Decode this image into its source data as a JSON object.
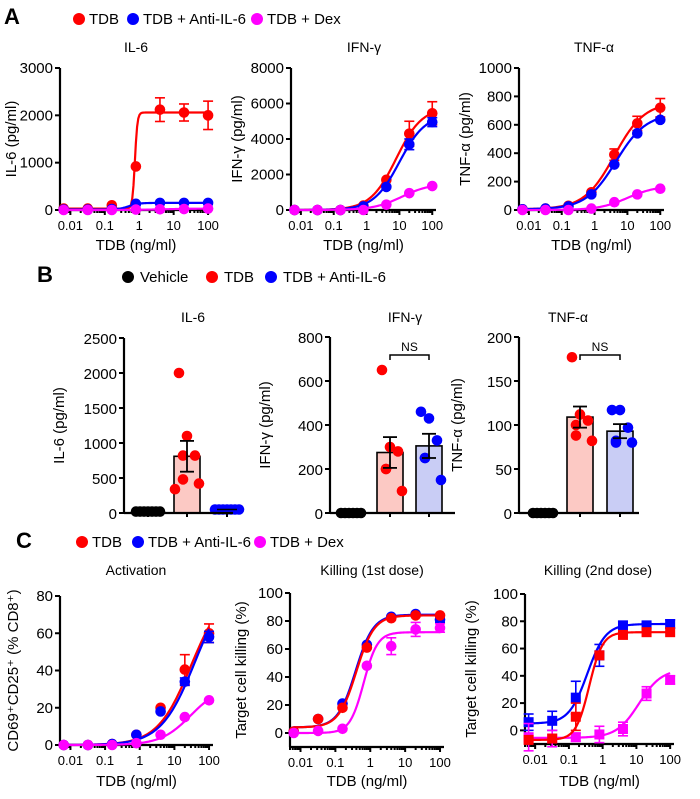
{
  "colors": {
    "TDB": "#ff0000",
    "TDB + Anti-IL-6": "#0000ff",
    "TDB + Dex": "#ff00ff",
    "Vehicle": "#000000",
    "bar_fill_TDB": "#fcc9c4",
    "bar_fill_anti": "#c9cdf5"
  },
  "panels": {
    "A": {
      "letter": "A",
      "legend": [
        "TDB",
        "TDB + Anti-IL-6",
        "TDB + Dex"
      ]
    },
    "B": {
      "letter": "B",
      "legend": [
        "Vehicle",
        "TDB",
        "TDB + Anti-IL-6"
      ]
    },
    "C": {
      "letter": "C",
      "legend": [
        "TDB",
        "TDB + Anti-IL-6",
        "TDB + Dex"
      ]
    }
  },
  "chart_data": [
    {
      "id": "A-IL6",
      "panel": "A",
      "type": "line",
      "title": "IL-6",
      "xlabel": "TDB (ng/ml)",
      "ylabel": "IL-6 (pg/ml)",
      "xscale": "log",
      "xlim": [
        0.005,
        130
      ],
      "xticks": [
        0.01,
        0.1,
        1,
        10,
        100
      ],
      "xticklabels": [
        "0.01",
        "0.1",
        "1",
        "10",
        "100"
      ],
      "ylim": [
        0,
        3000
      ],
      "yticks": [
        0,
        1000,
        2000,
        3000
      ],
      "marker": "circle",
      "x": [
        0.0064,
        0.032,
        0.16,
        0.8,
        4,
        20,
        100
      ],
      "series": [
        {
          "name": "TDB",
          "values": [
            30,
            30,
            100,
            920,
            2120,
            2060,
            2000
          ],
          "err": [
            0,
            0,
            0,
            0,
            250,
            180,
            300
          ],
          "fit": {
            "bottom": 30,
            "top": 2060,
            "ec50": 0.75,
            "hill": 12
          }
        },
        {
          "name": "TDB + Anti-IL-6",
          "values": [
            10,
            10,
            20,
            130,
            150,
            150,
            150
          ],
          "err": [
            0,
            0,
            0,
            0,
            0,
            0,
            0
          ],
          "fit": {
            "bottom": 10,
            "top": 150,
            "ec50": 0.5,
            "hill": 3
          }
        },
        {
          "name": "TDB + Dex",
          "values": [
            0,
            0,
            0,
            10,
            15,
            20,
            30
          ],
          "err": [
            0,
            0,
            0,
            0,
            0,
            0,
            0
          ],
          "fit": {
            "bottom": 0,
            "top": 30,
            "ec50": 5,
            "hill": 1
          }
        }
      ]
    },
    {
      "id": "A-IFNg",
      "panel": "A",
      "type": "line",
      "title": "IFN-γ",
      "xlabel": "TDB (ng/ml)",
      "ylabel": "IFN-γ (pg/ml)",
      "xscale": "log",
      "xlim": [
        0.005,
        130
      ],
      "xticks": [
        0.01,
        0.1,
        1,
        10,
        100
      ],
      "xticklabels": [
        "0.01",
        "0.1",
        "1",
        "10",
        "100"
      ],
      "ylim": [
        0,
        8000
      ],
      "yticks": [
        0,
        2000,
        4000,
        6000,
        8000
      ],
      "marker": "circle",
      "x": [
        0.0064,
        0.032,
        0.16,
        0.8,
        4,
        20,
        100
      ],
      "series": [
        {
          "name": "TDB",
          "values": [
            0,
            0,
            0,
            250,
            1700,
            4300,
            5450
          ],
          "err": [
            0,
            0,
            0,
            0,
            0,
            700,
            650
          ],
          "fit": {
            "bottom": 0,
            "top": 5800,
            "ec50": 8,
            "hill": 1.1
          }
        },
        {
          "name": "TDB + Anti-IL-6",
          "values": [
            0,
            0,
            0,
            200,
            1300,
            3700,
            4950
          ],
          "err": [
            0,
            0,
            0,
            0,
            0,
            300,
            250
          ],
          "fit": {
            "bottom": 0,
            "top": 5400,
            "ec50": 10,
            "hill": 1.1
          }
        },
        {
          "name": "TDB + Dex",
          "values": [
            0,
            0,
            0,
            0,
            300,
            950,
            1350
          ],
          "err": [
            0,
            0,
            0,
            0,
            0,
            0,
            0
          ],
          "fit": {
            "bottom": 0,
            "top": 1500,
            "ec50": 12,
            "hill": 1.0
          }
        }
      ]
    },
    {
      "id": "A-TNFa",
      "panel": "A",
      "type": "line",
      "title": "TNF-α",
      "xlabel": "TDB (ng/ml)",
      "ylabel": "TNF-α (pg/ml)",
      "xscale": "log",
      "xlim": [
        0.005,
        130
      ],
      "xticks": [
        0.01,
        0.1,
        1,
        10,
        100
      ],
      "xticklabels": [
        "0.01",
        "0.1",
        "1",
        "10",
        "100"
      ],
      "ylim": [
        0,
        1000
      ],
      "yticks": [
        0,
        200,
        400,
        600,
        800,
        1000
      ],
      "marker": "circle",
      "x": [
        0.0064,
        0.032,
        0.16,
        0.8,
        4,
        20,
        100
      ],
      "series": [
        {
          "name": "TDB",
          "values": [
            5,
            10,
            30,
            125,
            390,
            610,
            720
          ],
          "err": [
            0,
            0,
            0,
            0,
            40,
            50,
            65
          ],
          "fit": {
            "bottom": 5,
            "top": 760,
            "ec50": 4,
            "hill": 0.95
          }
        },
        {
          "name": "TDB + Anti-IL-6",
          "values": [
            5,
            10,
            25,
            110,
            320,
            540,
            635
          ],
          "err": [
            0,
            0,
            0,
            0,
            0,
            0,
            0
          ],
          "fit": {
            "bottom": 5,
            "top": 680,
            "ec50": 4.5,
            "hill": 0.95
          }
        },
        {
          "name": "TDB + Dex",
          "values": [
            0,
            0,
            0,
            10,
            55,
            110,
            150
          ],
          "err": [
            0,
            0,
            0,
            0,
            0,
            0,
            0
          ],
          "fit": {
            "bottom": 0,
            "top": 170,
            "ec50": 10,
            "hill": 1.0
          }
        }
      ]
    },
    {
      "id": "B-IL6",
      "panel": "B",
      "type": "bar",
      "title": "IL-6",
      "ylabel": "IL-6 (pg/ml)",
      "ylim": [
        0,
        2500
      ],
      "yticks": [
        0,
        500,
        1000,
        1500,
        2000,
        2500
      ],
      "categories": [
        "Vehicle",
        "TDB",
        "TDB + Anti-IL-6"
      ],
      "means": [
        20,
        810,
        50
      ],
      "sem": [
        0,
        220,
        0
      ],
      "points": [
        [
          20,
          20,
          20,
          20,
          20,
          20,
          20
        ],
        [
          2000,
          1100,
          820,
          820,
          480,
          420,
          340
        ],
        [
          50,
          50,
          50,
          50,
          50,
          50,
          50
        ]
      ],
      "significance": []
    },
    {
      "id": "B-IFNg",
      "panel": "B",
      "type": "bar",
      "title": "IFN-γ",
      "ylabel": "IFN-γ (pg/ml)",
      "ylim": [
        0,
        800
      ],
      "yticks": [
        0,
        200,
        400,
        600,
        800
      ],
      "categories": [
        "Vehicle",
        "TDB",
        "TDB + Anti-IL-6"
      ],
      "means": [
        0,
        275,
        305
      ],
      "sem": [
        0,
        70,
        55
      ],
      "points": [
        [
          0,
          0,
          0,
          0,
          0,
          0
        ],
        [
          650,
          300,
          280,
          200,
          200,
          100
        ],
        [
          460,
          430,
          330,
          250,
          250,
          150
        ]
      ],
      "significance": [
        {
          "between": [
            1,
            2
          ],
          "label": "NS"
        }
      ]
    },
    {
      "id": "B-TNFa",
      "panel": "B",
      "type": "bar",
      "title": "TNF-α",
      "ylabel": "TNF-α (pg/ml)",
      "ylim": [
        0,
        200
      ],
      "yticks": [
        0,
        50,
        100,
        150,
        200
      ],
      "categories": [
        "Vehicle",
        "TDB",
        "TDB + Anti-IL-6"
      ],
      "means": [
        0,
        109,
        93
      ],
      "sem": [
        0,
        12,
        8
      ],
      "points": [
        [
          0,
          0,
          0,
          0,
          0,
          0
        ],
        [
          177,
          112,
          105,
          100,
          88,
          82
        ],
        [
          117,
          117,
          97,
          82,
          80,
          80
        ]
      ],
      "significance": [
        {
          "between": [
            1,
            2
          ],
          "label": "NS"
        }
      ]
    },
    {
      "id": "C-Activation",
      "panel": "C",
      "type": "line",
      "title": "Activation",
      "xlabel": "TDB (ng/ml)",
      "ylabel": "CD69⁺CD25⁺ (% CD8⁺)",
      "xscale": "log",
      "xlim": [
        0.005,
        130
      ],
      "xticks": [
        0.01,
        0.1,
        1,
        10,
        100
      ],
      "xticklabels": [
        "0.01",
        "0.1",
        "1",
        "10",
        "100"
      ],
      "ylim": [
        0,
        80
      ],
      "yticks": [
        0,
        20,
        40,
        60,
        80
      ],
      "marker": "circle",
      "x": [
        0.0064,
        0.032,
        0.16,
        0.8,
        4,
        20,
        100
      ],
      "series": [
        {
          "name": "TDB",
          "values": [
            0,
            0,
            0.5,
            5.5,
            20,
            40.5,
            60
          ],
          "err": [
            0,
            0,
            0,
            0,
            0,
            8,
            5
          ],
          "fit": {
            "bottom": 0,
            "top": 85,
            "ec50": 30,
            "hill": 0.9
          }
        },
        {
          "name": "TDB + Anti-IL-6",
          "values": [
            0,
            0,
            0.5,
            5.5,
            18,
            34,
            58
          ],
          "err": [
            0,
            0,
            0,
            0,
            0,
            2,
            3
          ],
          "fit": {
            "bottom": 0,
            "top": 90,
            "ec50": 40,
            "hill": 0.88
          }
        },
        {
          "name": "TDB + Dex",
          "values": [
            0,
            0,
            0,
            1,
            5.5,
            15,
            24
          ],
          "err": [
            0,
            0,
            0,
            0,
            0,
            0,
            0
          ],
          "fit": {
            "bottom": 0,
            "top": 32,
            "ec50": 30,
            "hill": 1.0
          }
        }
      ]
    },
    {
      "id": "C-Killing1",
      "panel": "C",
      "type": "line",
      "title": "Killing (1st dose)",
      "xlabel": "TDB (ng/ml)",
      "ylabel": "Target cell killing (%)",
      "xscale": "log",
      "xlim": [
        0.005,
        130
      ],
      "xticks": [
        0.01,
        0.1,
        1,
        10,
        100
      ],
      "xticklabels": [
        "0.01",
        "0.1",
        "1",
        "10",
        "100"
      ],
      "ylim": [
        -10,
        100
      ],
      "yticks": [
        0,
        20,
        40,
        60,
        80,
        100
      ],
      "marker": "circle",
      "x": [
        0.0064,
        0.032,
        0.16,
        0.8,
        4,
        20,
        100
      ],
      "series": [
        {
          "name": "TDB + Anti-IL-6",
          "values": [
            1,
            10,
            21,
            63,
            83,
            85,
            81
          ],
          "err": [
            0,
            0,
            0,
            0,
            0,
            0,
            2
          ],
          "fit": {
            "bottom": 4,
            "top": 84.5,
            "ec50": 0.38,
            "hill": 1.7
          }
        },
        {
          "name": "TDB",
          "values": [
            1,
            10,
            18,
            61,
            82,
            84,
            84
          ],
          "err": [
            0,
            0,
            0,
            0,
            0,
            0,
            0
          ],
          "fit": {
            "bottom": 4,
            "top": 84,
            "ec50": 0.4,
            "hill": 1.7
          }
        },
        {
          "name": "TDB + Dex",
          "values": [
            0,
            1.5,
            3,
            48,
            62,
            74,
            75
          ],
          "err": [
            0,
            0,
            0,
            0,
            6,
            5,
            3
          ],
          "fit": {
            "bottom": 0,
            "top": 72,
            "ec50": 0.65,
            "hill": 2.2
          }
        }
      ]
    },
    {
      "id": "C-Killing2",
      "panel": "C",
      "type": "line",
      "title": "Killing (2nd dose)",
      "xlabel": "TDB (ng/ml)",
      "ylabel": "Target cell killing (%)",
      "xscale": "log",
      "xlim": [
        0.005,
        130
      ],
      "xticks": [
        0.01,
        0.1,
        1,
        10,
        100
      ],
      "xticklabels": [
        "0.01",
        "0.1",
        "1",
        "10",
        "100"
      ],
      "ylim": [
        -10,
        100
      ],
      "yticks": [
        0,
        20,
        40,
        60,
        80,
        100
      ],
      "marker": "square",
      "x": [
        0.0064,
        0.032,
        0.16,
        0.8,
        4,
        20,
        100
      ],
      "series": [
        {
          "name": "TDB + Anti-IL-6",
          "values": [
            6,
            7,
            24,
            55,
            77,
            77,
            78
          ],
          "err": [
            6,
            7,
            12,
            8,
            3,
            2,
            3
          ],
          "fit": {
            "bottom": 5,
            "top": 78,
            "ec50": 0.35,
            "hill": 1.6
          }
        },
        {
          "name": "TDB + Dex",
          "values": [
            -5,
            -6,
            -5,
            -3,
            1,
            27,
            37
          ],
          "err": [
            10,
            6,
            3,
            6,
            5,
            5,
            3
          ],
          "fit": {
            "bottom": -5.5,
            "top": 45,
            "ec50": 12,
            "hill": 1.3
          }
        },
        {
          "name": "TDB",
          "values": [
            -7,
            -6,
            10,
            55,
            70,
            72,
            72
          ],
          "err": [
            0,
            0,
            10,
            0,
            0,
            0,
            0
          ],
          "fit": {
            "bottom": -7,
            "top": 72,
            "ec50": 0.4,
            "hill": 2.2
          }
        }
      ]
    }
  ]
}
